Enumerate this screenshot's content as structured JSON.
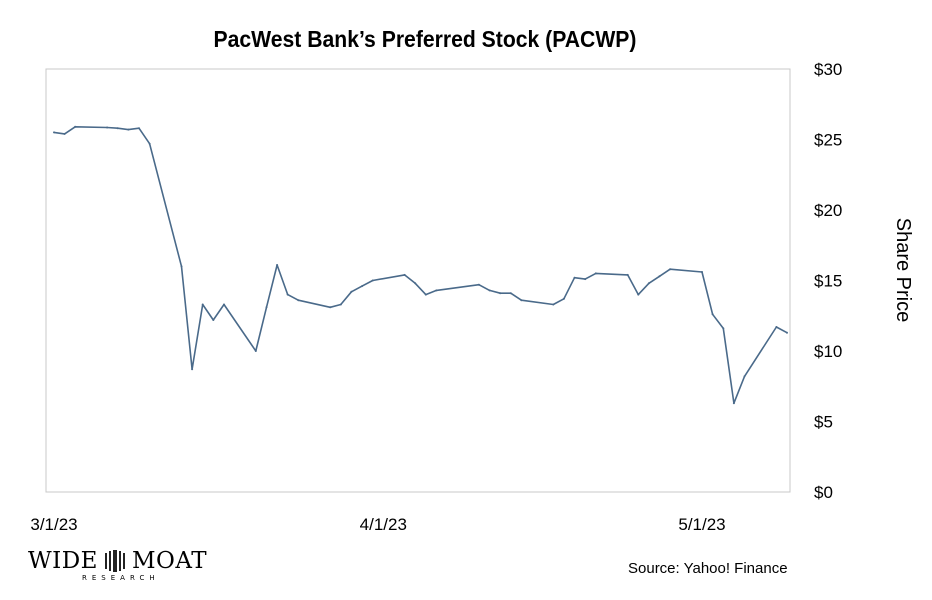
{
  "chart_data": {
    "type": "line",
    "title": "PacWest Bank’s Preferred Stock (PACWP)",
    "ylabel": "Share Price",
    "ylim": [
      0,
      30
    ],
    "y_ticks": [
      "$0",
      "$5",
      "$10",
      "$15",
      "$20",
      "$25",
      "$30"
    ],
    "x_ticks": [
      {
        "label": "3/1/23",
        "date": "2023-03-01"
      },
      {
        "label": "4/1/23",
        "date": "2023-04-01"
      },
      {
        "label": "5/1/23",
        "date": "2023-05-01"
      }
    ],
    "xlim": [
      "2023-03-01",
      "2023-05-10"
    ],
    "grid": false,
    "line_color": "#4a6a8a",
    "series": [
      {
        "name": "",
        "x": [
          "2023-03-01",
          "2023-03-02",
          "2023-03-03",
          "2023-03-06",
          "2023-03-07",
          "2023-03-08",
          "2023-03-09",
          "2023-03-10",
          "2023-03-13",
          "2023-03-14",
          "2023-03-15",
          "2023-03-16",
          "2023-03-17",
          "2023-03-20",
          "2023-03-21",
          "2023-03-22",
          "2023-03-23",
          "2023-03-24",
          "2023-03-27",
          "2023-03-28",
          "2023-03-29",
          "2023-03-30",
          "2023-03-31",
          "2023-04-03",
          "2023-04-04",
          "2023-04-05",
          "2023-04-06",
          "2023-04-10",
          "2023-04-11",
          "2023-04-12",
          "2023-04-13",
          "2023-04-14",
          "2023-04-17",
          "2023-04-18",
          "2023-04-19",
          "2023-04-20",
          "2023-04-21",
          "2023-04-24",
          "2023-04-25",
          "2023-04-26",
          "2023-04-27",
          "2023-04-28",
          "2023-05-01",
          "2023-05-02",
          "2023-05-03",
          "2023-05-04",
          "2023-05-05",
          "2023-05-08",
          "2023-05-09"
        ],
        "y": [
          25.5,
          25.4,
          25.9,
          25.85,
          25.8,
          25.7,
          25.8,
          24.7,
          16.0,
          8.7,
          13.3,
          12.2,
          13.3,
          10.0,
          13.1,
          16.1,
          14.0,
          13.6,
          13.1,
          13.3,
          14.2,
          14.6,
          15.0,
          15.4,
          14.8,
          14.0,
          14.3,
          14.7,
          14.3,
          14.1,
          14.1,
          13.6,
          13.3,
          13.7,
          15.2,
          15.1,
          15.5,
          15.4,
          14.0,
          14.8,
          15.3,
          15.8,
          15.6,
          12.6,
          11.6,
          6.3,
          8.2,
          11.7,
          11.3
        ]
      }
    ]
  },
  "source_text": "Source: Yahoo! Finance",
  "logo": {
    "word_left": "WIDE",
    "word_right": "MOAT",
    "sub": "RESEARCH"
  }
}
